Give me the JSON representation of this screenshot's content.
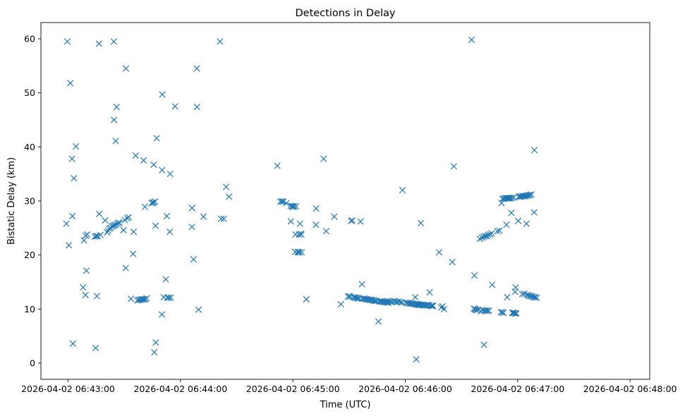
{
  "chart_data": {
    "type": "scatter",
    "title": "Detections in Delay",
    "xlabel": "Time (UTC)",
    "ylabel": "Bistatic Delay (km)",
    "x_unit": "seconds after 2026-04-02 06:43:00",
    "xlim": [
      -14.5,
      310.5
    ],
    "ylim": [
      -3,
      63
    ],
    "x_ticks": [
      {
        "value": 0,
        "label": "2026-04-02 06:43:00"
      },
      {
        "value": 60,
        "label": "2026-04-02 06:44:00"
      },
      {
        "value": 120,
        "label": "2026-04-02 06:45:00"
      },
      {
        "value": 180,
        "label": "2026-04-02 06:46:00"
      },
      {
        "value": 240,
        "label": "2026-04-02 06:47:00"
      },
      {
        "value": 300,
        "label": "2026-04-02 06:48:00"
      }
    ],
    "y_ticks": [
      {
        "value": 0,
        "label": "0"
      },
      {
        "value": 10,
        "label": "10"
      },
      {
        "value": 20,
        "label": "20"
      },
      {
        "value": 30,
        "label": "30"
      },
      {
        "value": 40,
        "label": "40"
      },
      {
        "value": 50,
        "label": "50"
      },
      {
        "value": 60,
        "label": "60"
      }
    ],
    "marker": "x",
    "color": "#1f77b4",
    "series": [
      {
        "name": "detections",
        "points": [
          [
            -0.9,
            25.8
          ],
          [
            -0.4,
            59.5
          ],
          [
            0.4,
            21.8
          ],
          [
            1.2,
            51.8
          ],
          [
            2.1,
            37.8
          ],
          [
            2.3,
            27.2
          ],
          [
            2.6,
            3.6
          ],
          [
            3.1,
            34.2
          ],
          [
            4.2,
            40.1
          ],
          [
            8.0,
            14.0
          ],
          [
            8.5,
            22.7
          ],
          [
            9.3,
            12.6
          ],
          [
            9.4,
            23.6
          ],
          [
            9.8,
            17.1
          ],
          [
            10.2,
            23.8
          ],
          [
            14.3,
            23.4
          ],
          [
            14.7,
            2.8
          ],
          [
            15.1,
            23.5
          ],
          [
            15.4,
            12.4
          ],
          [
            15.7,
            23.5
          ],
          [
            16.5,
            59.1
          ],
          [
            16.6,
            27.6
          ],
          [
            17.3,
            23.7
          ],
          [
            19.8,
            26.4
          ],
          [
            20.8,
            24.2
          ],
          [
            21.4,
            24.5
          ],
          [
            22.0,
            24.9
          ],
          [
            22.7,
            25.0
          ],
          [
            23.3,
            25.3
          ],
          [
            24.0,
            25.4
          ],
          [
            24.5,
            45.0
          ],
          [
            24.7,
            25.5
          ],
          [
            25.4,
            25.6
          ],
          [
            25.4,
            41.1
          ],
          [
            25.9,
            47.4
          ],
          [
            26.3,
            25.8
          ],
          [
            26.9,
            26.0
          ],
          [
            27.5,
            25.9
          ],
          [
            24.4,
            59.5
          ],
          [
            29.6,
            24.6
          ],
          [
            30.2,
            26.5
          ],
          [
            30.8,
            17.6
          ],
          [
            30.9,
            54.5
          ],
          [
            31.6,
            26.8
          ],
          [
            32.4,
            27.0
          ],
          [
            33.6,
            11.9
          ],
          [
            34.7,
            20.2
          ],
          [
            35.0,
            24.3
          ],
          [
            36.1,
            38.4
          ],
          [
            37.0,
            11.6
          ],
          [
            37.7,
            11.7
          ],
          [
            38.4,
            11.7
          ],
          [
            39.1,
            11.8
          ],
          [
            39.8,
            11.8
          ],
          [
            40.3,
            37.5
          ],
          [
            40.5,
            11.8
          ],
          [
            41.0,
            28.9
          ],
          [
            41.2,
            11.8
          ],
          [
            41.9,
            12.0
          ],
          [
            44.6,
            29.6
          ],
          [
            45.2,
            29.7
          ],
          [
            45.7,
            36.7
          ],
          [
            45.8,
            29.7
          ],
          [
            46.0,
            2.0
          ],
          [
            46.4,
            29.9
          ],
          [
            46.7,
            25.4
          ],
          [
            46.8,
            3.8
          ],
          [
            47.3,
            41.6
          ],
          [
            50.1,
            9.0
          ],
          [
            50.2,
            35.7
          ],
          [
            50.3,
            49.7
          ],
          [
            51.0,
            12.2
          ],
          [
            52.2,
            15.5
          ],
          [
            52.7,
            27.2
          ],
          [
            53.0,
            12.1
          ],
          [
            53.7,
            12.1
          ],
          [
            54.3,
            24.3
          ],
          [
            54.5,
            35.0
          ],
          [
            54.8,
            12.1
          ],
          [
            57.1,
            47.5
          ],
          [
            66.2,
            28.7
          ],
          [
            66.1,
            25.2
          ],
          [
            67.0,
            19.2
          ],
          [
            68.7,
            54.5
          ],
          [
            68.8,
            47.4
          ],
          [
            69.7,
            9.9
          ],
          [
            72.3,
            27.1
          ],
          [
            81.1,
            59.5
          ],
          [
            81.7,
            26.7
          ],
          [
            83.1,
            26.7
          ],
          [
            84.4,
            32.6
          ],
          [
            85.9,
            30.8
          ],
          [
            111.7,
            36.5
          ],
          [
            113.4,
            29.9
          ],
          [
            114.2,
            29.9
          ],
          [
            114.9,
            29.9
          ],
          [
            116.5,
            29.6
          ],
          [
            118.8,
            29.1
          ],
          [
            118.9,
            26.2
          ],
          [
            119.5,
            29.0
          ],
          [
            120.0,
            29.0
          ],
          [
            120.2,
            28.9
          ],
          [
            120.6,
            29.0
          ],
          [
            121.2,
            20.6
          ],
          [
            121.4,
            23.8
          ],
          [
            121.7,
            29.0
          ],
          [
            122.6,
            20.6
          ],
          [
            122.9,
            20.5
          ],
          [
            123.2,
            23.8
          ],
          [
            123.5,
            20.5
          ],
          [
            123.8,
            25.8
          ],
          [
            124.3,
            23.9
          ],
          [
            124.5,
            23.8
          ],
          [
            124.7,
            20.5
          ],
          [
            127.2,
            11.8
          ],
          [
            132.3,
            25.6
          ],
          [
            132.4,
            28.6
          ],
          [
            136.4,
            37.8
          ],
          [
            137.8,
            24.4
          ],
          [
            142.1,
            27.1
          ],
          [
            145.6,
            10.9
          ],
          [
            149.4,
            12.3
          ],
          [
            150.0,
            12.4
          ],
          [
            150.7,
            12.3
          ],
          [
            151.1,
            26.3
          ],
          [
            151.7,
            26.4
          ],
          [
            152.4,
            12.2
          ],
          [
            153.1,
            12.1
          ],
          [
            153.8,
            12.1
          ],
          [
            154.5,
            12.0
          ],
          [
            155.2,
            12.0
          ],
          [
            156.1,
            26.2
          ],
          [
            156.8,
            11.9
          ],
          [
            156.9,
            14.6
          ],
          [
            157.7,
            11.9
          ],
          [
            158.4,
            11.9
          ],
          [
            159.1,
            11.8
          ],
          [
            159.8,
            11.8
          ],
          [
            160.5,
            11.7
          ],
          [
            161.2,
            11.7
          ],
          [
            161.9,
            11.7
          ],
          [
            162.6,
            11.6
          ],
          [
            163.3,
            11.6
          ],
          [
            164.0,
            11.5
          ],
          [
            164.7,
            11.5
          ],
          [
            165.7,
            7.7
          ],
          [
            166.1,
            11.4
          ],
          [
            166.8,
            11.4
          ],
          [
            167.5,
            11.4
          ],
          [
            168.2,
            11.3
          ],
          [
            168.9,
            11.3
          ],
          [
            169.6,
            11.3
          ],
          [
            170.3,
            11.2
          ],
          [
            170.6,
            11.5
          ],
          [
            171.0,
            11.2
          ],
          [
            172.1,
            11.4
          ],
          [
            172.9,
            11.3
          ],
          [
            173.9,
            11.5
          ],
          [
            174.6,
            11.4
          ],
          [
            175.5,
            11.3
          ],
          [
            176.4,
            11.4
          ],
          [
            177.5,
            11.3
          ],
          [
            178.3,
            11.2
          ],
          [
            178.5,
            32.0
          ],
          [
            180.2,
            11.2
          ],
          [
            181.1,
            11.1
          ],
          [
            181.9,
            11.1
          ],
          [
            182.6,
            11.0
          ],
          [
            183.3,
            11.0
          ],
          [
            184.0,
            11.0
          ],
          [
            184.7,
            10.9
          ],
          [
            185.3,
            12.2
          ],
          [
            185.6,
            10.9
          ],
          [
            185.9,
            0.7
          ],
          [
            186.2,
            10.9
          ],
          [
            186.6,
            10.9
          ],
          [
            186.9,
            10.8
          ],
          [
            187.3,
            10.8
          ],
          [
            187.7,
            10.8
          ],
          [
            188.1,
            10.8
          ],
          [
            188.3,
            25.9
          ],
          [
            188.8,
            10.8
          ],
          [
            189.4,
            10.7
          ],
          [
            190.1,
            10.7
          ],
          [
            190.8,
            10.7
          ],
          [
            191.4,
            10.7
          ],
          [
            192.0,
            10.8
          ],
          [
            192.8,
            10.7
          ],
          [
            193.0,
            13.1
          ],
          [
            193.9,
            10.6
          ],
          [
            194.4,
            10.6
          ],
          [
            194.8,
            10.6
          ],
          [
            198.1,
            20.5
          ],
          [
            199.2,
            10.3
          ],
          [
            199.9,
            10.5
          ],
          [
            200.7,
            10.0
          ],
          [
            205.1,
            18.7
          ],
          [
            205.9,
            36.4
          ],
          [
            215.4,
            59.8
          ],
          [
            216.6,
            10.1
          ],
          [
            216.9,
            16.2
          ],
          [
            217.2,
            10.0
          ],
          [
            217.5,
            9.9
          ],
          [
            218.1,
            9.8
          ],
          [
            218.9,
            9.9
          ],
          [
            219.8,
            23.0
          ],
          [
            220.6,
            9.6
          ],
          [
            220.9,
            23.2
          ],
          [
            221.3,
            9.8
          ],
          [
            221.8,
            23.4
          ],
          [
            222.0,
            3.4
          ],
          [
            222.3,
            9.7
          ],
          [
            222.7,
            23.5
          ],
          [
            223.0,
            9.7
          ],
          [
            223.5,
            23.5
          ],
          [
            223.8,
            9.7
          ],
          [
            224.3,
            23.7
          ],
          [
            224.6,
            9.7
          ],
          [
            225.3,
            23.8
          ],
          [
            226.1,
            24.0
          ],
          [
            226.4,
            14.5
          ],
          [
            229.1,
            24.4
          ],
          [
            230.3,
            24.5
          ],
          [
            231.1,
            9.4
          ],
          [
            231.4,
            29.6
          ],
          [
            231.8,
            9.4
          ],
          [
            231.9,
            30.4
          ],
          [
            232.4,
            9.3
          ],
          [
            232.6,
            30.4
          ],
          [
            233.3,
            30.5
          ],
          [
            233.9,
            30.5
          ],
          [
            234.0,
            25.6
          ],
          [
            234.4,
            12.2
          ],
          [
            234.5,
            30.5
          ],
          [
            235.1,
            30.5
          ],
          [
            235.6,
            30.5
          ],
          [
            236.2,
            30.5
          ],
          [
            236.6,
            27.8
          ],
          [
            236.8,
            30.6
          ],
          [
            237.2,
            9.3
          ],
          [
            237.6,
            9.3
          ],
          [
            237.9,
            30.6
          ],
          [
            238.1,
            9.3
          ],
          [
            238.6,
            13.2
          ],
          [
            238.7,
            9.2
          ],
          [
            238.9,
            14.0
          ],
          [
            239.3,
            9.2
          ],
          [
            240.3,
            26.3
          ],
          [
            240.6,
            30.8
          ],
          [
            241.3,
            30.8
          ],
          [
            241.9,
            30.8
          ],
          [
            242.5,
            12.8
          ],
          [
            242.6,
            30.9
          ],
          [
            243.3,
            30.9
          ],
          [
            243.6,
            12.8
          ],
          [
            243.9,
            30.9
          ],
          [
            244.5,
            31.0
          ],
          [
            244.7,
            25.8
          ],
          [
            245.1,
            12.6
          ],
          [
            245.2,
            31.0
          ],
          [
            245.8,
            12.5
          ],
          [
            245.9,
            31.1
          ],
          [
            246.5,
            12.4
          ],
          [
            246.6,
            31.1
          ],
          [
            247.2,
            12.4
          ],
          [
            247.3,
            31.2
          ],
          [
            247.9,
            12.3
          ],
          [
            248.6,
            12.2
          ],
          [
            248.8,
            27.9
          ],
          [
            248.9,
            39.4
          ],
          [
            249.4,
            12.2
          ],
          [
            250.1,
            12.1
          ]
        ]
      }
    ]
  }
}
